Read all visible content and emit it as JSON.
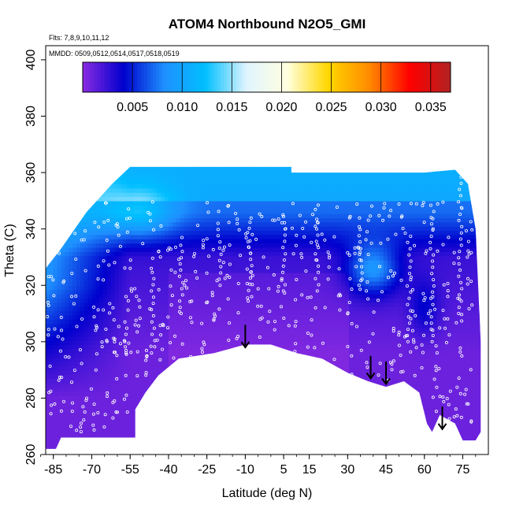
{
  "chart_data": {
    "type": "heatmap",
    "title": "ATOM4 Northbound N2O5_GMI",
    "annotations": [
      "Flts: 7,8,9,10,11,12",
      "MMDD: 0509,0512,0514,0517,0518,0519"
    ],
    "xlabel": "Latitude (deg N)",
    "ylabel": "Theta (C)",
    "xlim": [
      -88,
      85
    ],
    "ylim": [
      260,
      405
    ],
    "x_ticks": [
      -85,
      -70,
      -55,
      -40,
      -25,
      -10,
      5,
      15,
      30,
      45,
      60,
      75
    ],
    "y_ticks": [
      260,
      280,
      300,
      320,
      340,
      360,
      380,
      400
    ],
    "colorbar": {
      "range": [
        0.0,
        0.037
      ],
      "ticks": [
        0.005,
        0.01,
        0.015,
        0.02,
        0.025,
        0.03,
        0.035
      ],
      "tick_labels": [
        "0.005",
        "0.010",
        "0.015",
        "0.020",
        "0.025",
        "0.030",
        "0.035"
      ],
      "colors": [
        "#8a2be2",
        "#0000cd",
        "#1e90ff",
        "#00bfff",
        "#e0f4ff",
        "#ffffe0",
        "#ffd700",
        "#ff8c00",
        "#ff0000",
        "#b22222"
      ]
    },
    "field_bands": [
      {
        "theta": 362,
        "value": 0.0085
      },
      {
        "theta": 352,
        "value": 0.009
      },
      {
        "theta": 342,
        "value": 0.0055
      },
      {
        "theta": 330,
        "value": 0.0035
      },
      {
        "theta": 318,
        "value": 0.002
      },
      {
        "theta": 300,
        "value": 0.0012
      },
      {
        "theta": 280,
        "value": 0.0008
      }
    ],
    "arrows_lat": [
      -10,
      39,
      45,
      67
    ],
    "colors": {
      "contour": "#000000",
      "points": "#ffffff",
      "plot_border": "#000000"
    }
  }
}
